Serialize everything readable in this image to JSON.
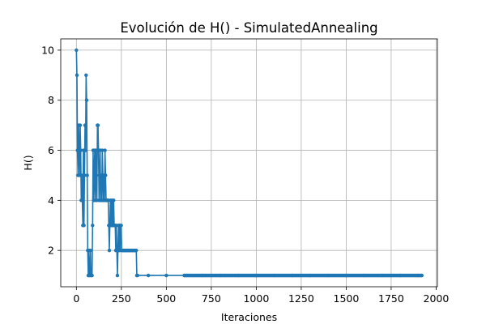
{
  "chart_data": {
    "type": "line",
    "title": "Evolución de H() - SimulatedAnnealing",
    "xlabel": "Iteraciones",
    "ylabel": "H()",
    "xlim": [
      -87,
      2007
    ],
    "ylim": [
      0.55,
      10.45
    ],
    "x_ticks": [
      0,
      250,
      500,
      750,
      1000,
      1250,
      1500,
      1750,
      2000
    ],
    "y_ticks": [
      2,
      4,
      6,
      8,
      10
    ],
    "grid": true,
    "series": [
      {
        "color": "#1f77b4",
        "marker": "circle",
        "x": [
          0,
          3,
          6,
          9,
          12,
          15,
          18,
          21,
          24,
          27,
          30,
          33,
          36,
          39,
          42,
          45,
          48,
          51,
          54,
          57,
          60,
          63,
          66,
          69,
          72,
          75,
          78,
          81,
          84,
          87,
          90,
          93,
          96,
          99,
          102,
          105,
          108,
          111,
          114,
          117,
          120,
          123,
          126,
          129,
          132,
          135,
          138,
          141,
          144,
          147,
          150,
          153,
          156,
          159,
          162,
          165,
          168,
          171,
          174,
          177,
          180,
          183,
          186,
          189,
          192,
          195,
          198,
          201,
          204,
          207,
          210,
          213,
          216,
          219,
          222,
          225,
          228,
          231,
          234,
          237,
          240,
          243,
          246,
          249,
          252,
          255,
          258,
          261,
          264,
          267,
          270,
          273,
          276,
          279,
          282,
          285,
          288,
          291,
          294,
          297,
          300,
          303,
          306,
          309,
          312,
          315,
          318,
          321,
          324,
          327,
          330,
          333,
          336,
          340,
          400,
          500,
          600,
          700,
          800,
          900,
          1000,
          1100,
          1200,
          1300,
          1400,
          1500,
          1600,
          1700,
          1800,
          1900,
          1920
        ],
        "y": [
          10,
          9,
          6,
          5,
          7,
          6,
          5,
          7,
          6,
          4,
          5,
          4,
          3,
          6,
          3,
          5,
          7,
          6,
          9,
          8,
          5,
          2,
          1,
          2,
          1,
          1,
          2,
          1,
          1,
          1,
          3,
          6,
          4,
          5,
          6,
          4,
          6,
          5,
          4,
          7,
          7,
          6,
          4,
          5,
          6,
          4,
          5,
          4,
          6,
          5,
          4,
          5,
          4,
          6,
          5,
          4,
          4,
          4,
          4,
          4,
          3,
          2,
          3,
          4,
          3,
          4,
          3,
          4,
          3,
          4,
          3,
          3,
          3,
          2,
          3,
          2,
          1,
          2,
          3,
          2,
          3,
          2,
          3,
          3,
          2,
          2,
          2,
          2,
          2,
          2,
          2,
          2,
          2,
          2,
          2,
          2,
          2,
          2,
          2,
          2,
          2,
          2,
          2,
          2,
          2,
          2,
          2,
          2,
          2,
          2,
          2,
          2,
          1,
          1,
          1,
          1,
          1,
          1,
          1,
          1,
          1,
          1,
          1,
          1,
          1,
          1,
          1,
          1,
          1,
          1,
          1
        ]
      }
    ]
  }
}
